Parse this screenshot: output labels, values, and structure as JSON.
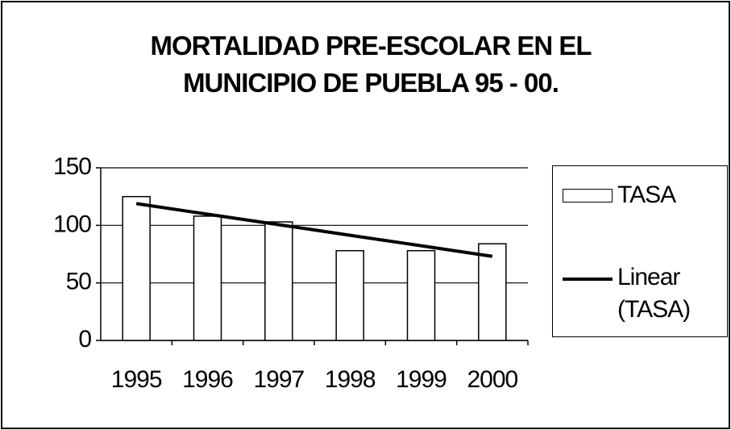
{
  "chart_data": {
    "type": "bar",
    "title": "MORTALIDAD PRE-ESCOLAR EN EL MUNICIPIO DE PUEBLA 95 - 00.",
    "categories": [
      "1995",
      "1996",
      "1997",
      "1998",
      "1999",
      "2000"
    ],
    "series": [
      {
        "name": "TASA",
        "type": "bar",
        "color": "#ffffff",
        "values": [
          125,
          108,
          103,
          78,
          78,
          84
        ]
      },
      {
        "name": "Linear (TASA)",
        "type": "line",
        "color": "#000000",
        "values": [
          118.9,
          109.7,
          100.6,
          91.4,
          82.3,
          73.1
        ]
      }
    ],
    "ylim": [
      0,
      150
    ],
    "yticks": [
      0,
      50,
      100,
      150
    ],
    "grid": true,
    "legend": "right"
  }
}
